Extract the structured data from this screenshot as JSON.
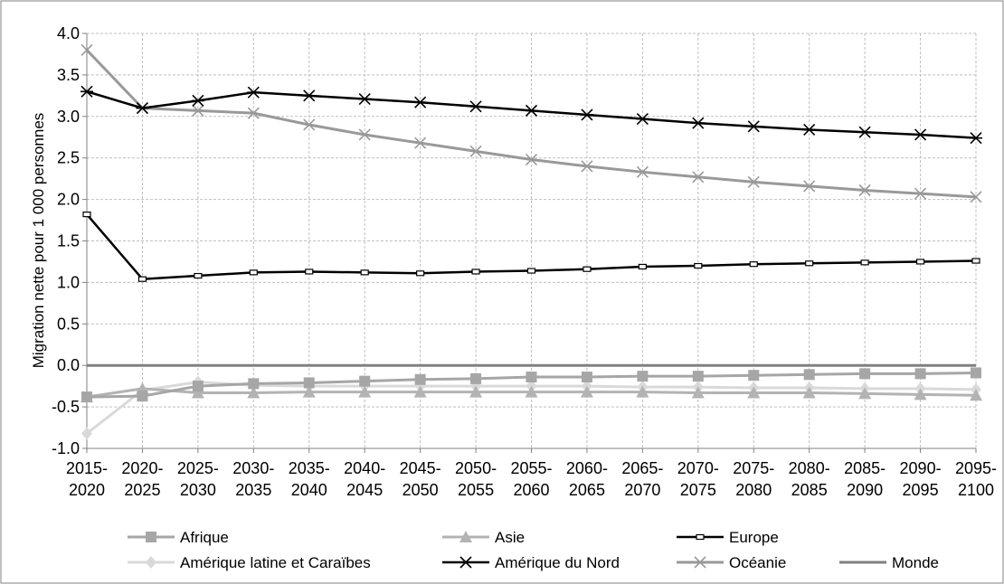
{
  "chart_data": {
    "type": "line",
    "ylabel": "Migration nette pour 1 000 personnes",
    "xlabel": "",
    "ylim": [
      -1.0,
      4.0
    ],
    "yticks": [
      "4.0",
      "3.5",
      "3.0",
      "2.5",
      "2.0",
      "1.5",
      "1.0",
      "0.5",
      "0.0",
      "-0.5",
      "-1.0"
    ],
    "grid": true,
    "legend_position": "bottom",
    "categories": [
      {
        "top": "2015-",
        "bottom": "2020"
      },
      {
        "top": "2020-",
        "bottom": "2025"
      },
      {
        "top": "2025-",
        "bottom": "2030"
      },
      {
        "top": "2030-",
        "bottom": "2035"
      },
      {
        "top": "2035-",
        "bottom": "2040"
      },
      {
        "top": "2040-",
        "bottom": "2045"
      },
      {
        "top": "2045-",
        "bottom": "2050"
      },
      {
        "top": "2050-",
        "bottom": "2055"
      },
      {
        "top": "2055-",
        "bottom": "2060"
      },
      {
        "top": "2060-",
        "bottom": "2065"
      },
      {
        "top": "2065-",
        "bottom": "2070"
      },
      {
        "top": "2070-",
        "bottom": "2075"
      },
      {
        "top": "2075-",
        "bottom": "2080"
      },
      {
        "top": "2080-",
        "bottom": "2085"
      },
      {
        "top": "2085-",
        "bottom": "2090"
      },
      {
        "top": "2090-",
        "bottom": "2095"
      },
      {
        "top": "2095-",
        "bottom": "2100"
      }
    ],
    "series": [
      {
        "name": "Afrique",
        "color": "#a6a6a6",
        "marker": "square",
        "values": [
          -0.38,
          -0.37,
          -0.25,
          -0.22,
          -0.21,
          -0.19,
          -0.17,
          -0.16,
          -0.14,
          -0.14,
          -0.13,
          -0.13,
          -0.12,
          -0.11,
          -0.1,
          -0.1,
          -0.09
        ]
      },
      {
        "name": "Asie",
        "color": "#b3b3b3",
        "marker": "triangle",
        "values": [
          -0.38,
          -0.28,
          -0.33,
          -0.33,
          -0.32,
          -0.32,
          -0.32,
          -0.32,
          -0.32,
          -0.32,
          -0.32,
          -0.33,
          -0.33,
          -0.33,
          -0.34,
          -0.35,
          -0.36
        ]
      },
      {
        "name": "Europe",
        "color": "#000000",
        "marker": "dash",
        "values": [
          1.82,
          1.04,
          1.08,
          1.12,
          1.13,
          1.12,
          1.11,
          1.13,
          1.14,
          1.16,
          1.19,
          1.2,
          1.22,
          1.23,
          1.24,
          1.25,
          1.26
        ]
      },
      {
        "name": "Amérique latine et Caraïbes",
        "color": "#d9d9d9",
        "marker": "diamond",
        "values": [
          -0.82,
          -0.3,
          -0.2,
          -0.24,
          -0.25,
          -0.25,
          -0.25,
          -0.25,
          -0.25,
          -0.25,
          -0.26,
          -0.26,
          -0.27,
          -0.27,
          -0.28,
          -0.28,
          -0.29
        ]
      },
      {
        "name": "Amérique du Nord",
        "color": "#000000",
        "marker": "star",
        "values": [
          3.3,
          3.1,
          3.19,
          3.29,
          3.25,
          3.21,
          3.17,
          3.12,
          3.07,
          3.02,
          2.97,
          2.92,
          2.88,
          2.84,
          2.81,
          2.78,
          2.74
        ]
      },
      {
        "name": "Océanie",
        "color": "#999999",
        "marker": "x",
        "values": [
          3.8,
          3.1,
          3.07,
          3.04,
          2.9,
          2.78,
          2.68,
          2.58,
          2.48,
          2.4,
          2.33,
          2.27,
          2.21,
          2.16,
          2.11,
          2.07,
          2.03
        ]
      },
      {
        "name": "Monde",
        "color": "#808080",
        "marker": "none",
        "values": [
          0.0,
          0.0,
          0.0,
          0.0,
          0.0,
          0.0,
          0.0,
          0.0,
          0.0,
          0.0,
          0.0,
          0.0,
          0.0,
          0.0,
          0.0,
          0.0,
          0.0
        ]
      }
    ]
  }
}
